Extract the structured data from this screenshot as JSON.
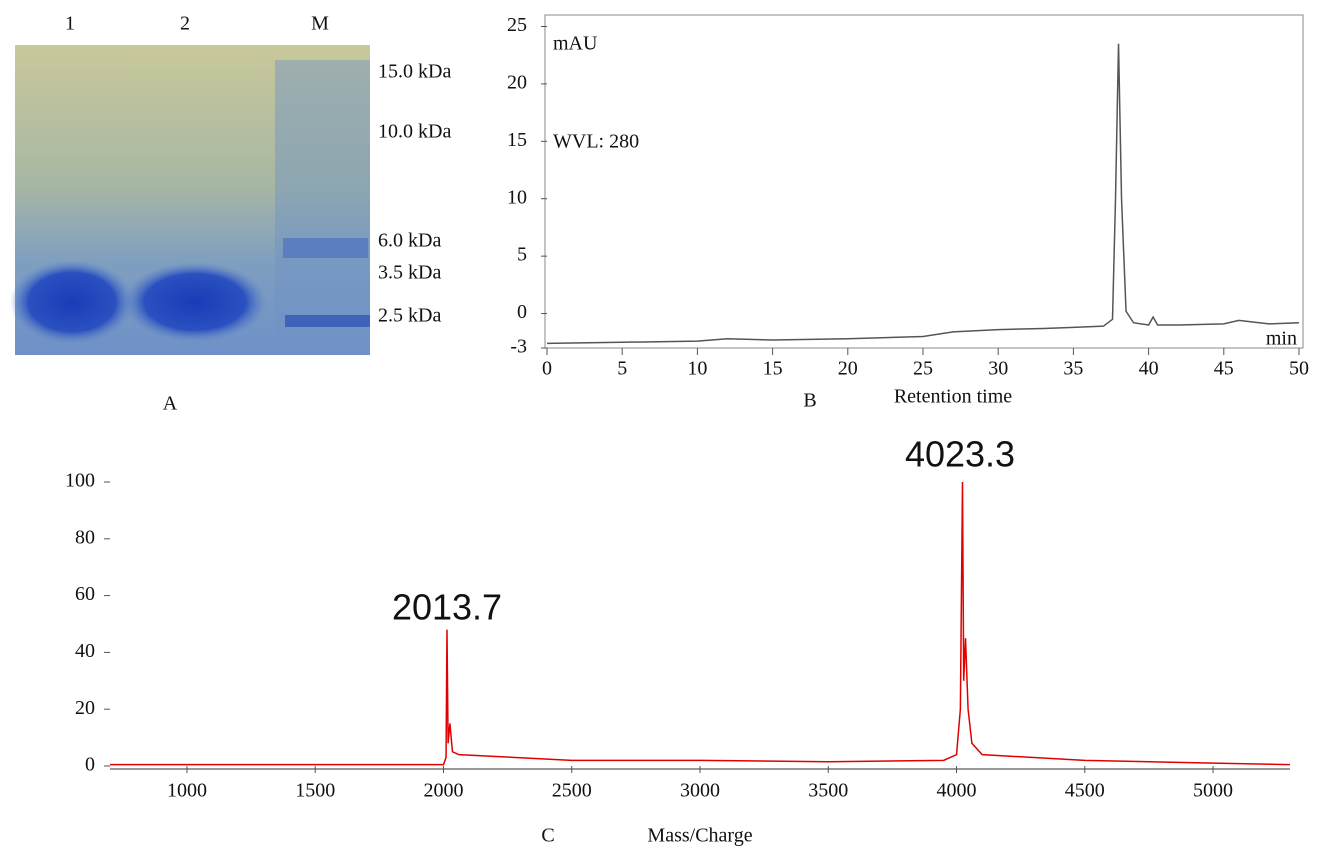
{
  "gel": {
    "lane_labels": [
      "1",
      "2",
      "M"
    ],
    "marker_labels": [
      "15.0 kDa",
      "10.0 kDa",
      "6.0 kDa",
      "3.5 kDa",
      "2.5 kDa"
    ],
    "panel_label": "A"
  },
  "chart_data": [
    {
      "type": "line",
      "panel_label": "B",
      "x_label": "Retention time",
      "annotations": [
        "mAU",
        "WVL: 280",
        "min"
      ],
      "color": "#555555",
      "box": true,
      "x": [
        0,
        5,
        10,
        12,
        15,
        20,
        25,
        27,
        30,
        33,
        35,
        37,
        37.6,
        37.8,
        38,
        38.2,
        38.5,
        39,
        40,
        40.3,
        40.6,
        42,
        45,
        46,
        48,
        50
      ],
      "values": [
        -2.6,
        -2.5,
        -2.4,
        -2.2,
        -2.3,
        -2.2,
        -2.0,
        -1.6,
        -1.4,
        -1.3,
        -1.2,
        -1.1,
        -0.5,
        10,
        23.5,
        10,
        0.2,
        -0.8,
        -1.0,
        -0.3,
        -1.0,
        -1.0,
        -0.9,
        -0.6,
        -0.9,
        -0.8
      ],
      "xlim": [
        0,
        50
      ],
      "ylim": [
        -3,
        26
      ],
      "xticks": [
        0,
        5,
        10,
        15,
        20,
        25,
        30,
        35,
        40,
        45,
        50
      ],
      "yticks": [
        -3,
        0,
        5,
        10,
        15,
        20,
        25
      ]
    },
    {
      "type": "line",
      "panel_label": "C",
      "x_label": "Mass/Charge",
      "annotations": [
        "2013.7",
        "4023.3"
      ],
      "color": "#e00000",
      "box": false,
      "x": [
        700,
        2000,
        2010,
        2013.7,
        2018,
        2025,
        2035,
        2060,
        2500,
        3000,
        3500,
        3950,
        4000,
        4015,
        4023.3,
        4028,
        4035,
        4045,
        4060,
        4100,
        4500,
        5000,
        5300
      ],
      "values": [
        0.5,
        0.5,
        3,
        48,
        8,
        15,
        5,
        4,
        2,
        2,
        1.5,
        2,
        4,
        20,
        100,
        30,
        45,
        20,
        8,
        4,
        2,
        1,
        0.5
      ],
      "xlim": [
        700,
        5300
      ],
      "ylim": [
        0,
        100
      ],
      "xticks": [
        1000,
        1500,
        2000,
        2500,
        3000,
        3500,
        4000,
        4500,
        5000
      ],
      "yticks": [
        0,
        20,
        40,
        60,
        80,
        100
      ]
    }
  ]
}
